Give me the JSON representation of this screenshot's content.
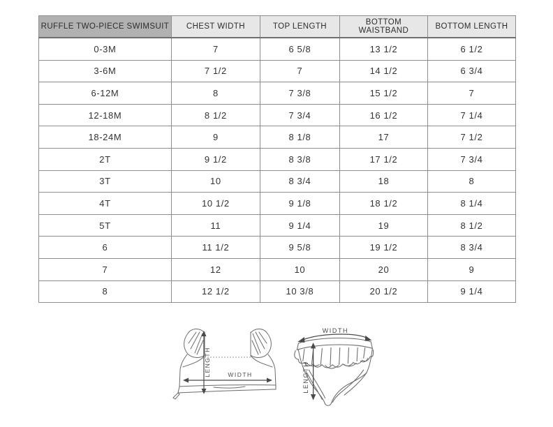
{
  "chart_data": {
    "type": "table",
    "title": "RUFFLE TWO-PIECE SWIMSUIT",
    "columns": [
      "CHEST WIDTH",
      "TOP LENGTH",
      "BOTTOM WAISTBAND",
      "BOTTOM LENGTH"
    ],
    "rows": [
      [
        "0-3M",
        "7",
        "6 5/8",
        "13 1/2",
        "6 1/2"
      ],
      [
        "3-6M",
        "7 1/2",
        "7",
        "14 1/2",
        "6 3/4"
      ],
      [
        "6-12M",
        "8",
        "7 3/8",
        "15 1/2",
        "7"
      ],
      [
        "12-18M",
        "8 1/2",
        "7 3/4",
        "16 1/2",
        "7 1/4"
      ],
      [
        "18-24M",
        "9",
        "8 1/8",
        "17",
        "7 1/2"
      ],
      [
        "2T",
        "9 1/2",
        "8 3/8",
        "17 1/2",
        "7 3/4"
      ],
      [
        "3T",
        "10",
        "8 3/4",
        "18",
        "8"
      ],
      [
        "4T",
        "10 1/2",
        "9 1/8",
        "18 1/2",
        "8 1/4"
      ],
      [
        "5T",
        "11",
        "9 1/4",
        "19",
        "8 1/2"
      ],
      [
        "6",
        "11 1/2",
        "9 5/8",
        "19 1/2",
        "8 3/4"
      ],
      [
        "7",
        "12",
        "10",
        "20",
        "9"
      ],
      [
        "8",
        "12 1/2",
        "10 3/8",
        "20 1/2",
        "9 1/4"
      ]
    ]
  },
  "diagrams": {
    "top_piece": {
      "width_label": "WIDTH",
      "length_label": "LENGTH"
    },
    "bottom_piece": {
      "width_label": "WIDTH",
      "length_label": "LENGTH"
    }
  },
  "colors": {
    "title_header_bg": "#b1b1b1",
    "column_header_bg": "#e7e7e7",
    "grid_line": "#8d8d8d",
    "text": "#333333",
    "sketch_line": "#6b6b6b",
    "arrow": "#4a4a4a"
  }
}
